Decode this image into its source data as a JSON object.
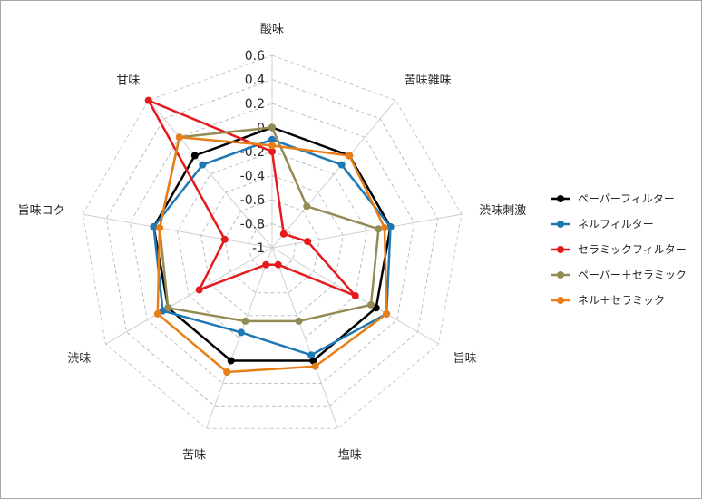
{
  "chart_data": {
    "type": "radar",
    "title": "",
    "axes": [
      "酸味",
      "苦味雑味",
      "渋味刺激",
      "旨味",
      "塩味",
      "苦味",
      "渋味",
      "旨味コク",
      "甘味"
    ],
    "rlim": [
      -1,
      0.6
    ],
    "ticks": [
      "0.6",
      "0.4",
      "0.2",
      "0",
      "-0.2",
      "-0.4",
      "-0.6",
      "-0.8",
      "-1"
    ],
    "tick_values": [
      0.6,
      0.4,
      0.2,
      0,
      -0.2,
      -0.4,
      -0.6,
      -0.8,
      -1
    ],
    "grid": "dashed",
    "legend_position": "right",
    "series": [
      {
        "name": "ペーパーフィルター",
        "color": "#000000",
        "values": [
          0.0,
          0.0,
          0.0,
          0.0,
          0.0,
          0.0,
          0.0,
          0.0,
          0.0
        ]
      },
      {
        "name": "ネルフィルター",
        "color": "#1f77b4",
        "values": [
          -0.1,
          -0.1,
          0.0,
          0.1,
          -0.05,
          -0.25,
          0.05,
          0.0,
          -0.1
        ]
      },
      {
        "name": "セラミックフィルター",
        "color": "#e41a1c",
        "values": [
          -0.2,
          -0.85,
          -0.7,
          -0.2,
          -0.85,
          -0.85,
          -0.3,
          -0.6,
          0.6
        ]
      },
      {
        "name": "ペーパー＋セラミック",
        "color": "#948a54",
        "values": [
          0.0,
          -0.55,
          -0.1,
          -0.05,
          -0.35,
          -0.35,
          0.0,
          -0.05,
          0.2
        ]
      },
      {
        "name": "ネル＋セラミック",
        "color": "#e87e17",
        "values": [
          -0.15,
          0.0,
          -0.05,
          0.1,
          0.05,
          0.1,
          0.1,
          -0.05,
          0.2
        ]
      }
    ]
  }
}
